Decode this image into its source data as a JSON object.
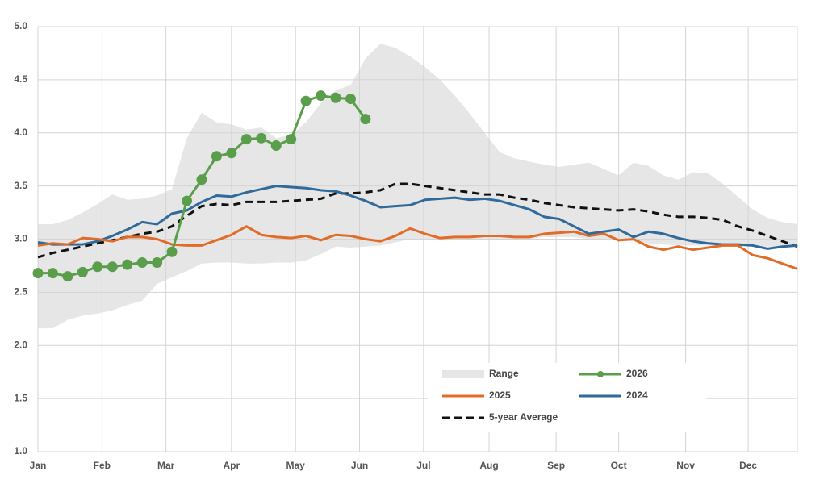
{
  "chart_data": {
    "type": "line",
    "x": [
      1,
      2,
      3,
      4,
      5,
      6,
      7,
      8,
      9,
      10,
      11,
      12,
      13,
      14,
      15,
      16,
      17,
      18,
      19,
      20,
      21,
      22,
      23,
      24,
      25,
      26,
      27,
      28,
      29,
      30,
      31,
      32,
      33,
      34,
      35,
      36,
      37,
      38,
      39,
      40,
      41,
      42,
      43,
      44,
      45,
      46,
      47,
      48,
      49,
      50,
      51,
      52
    ],
    "xlim": [
      1,
      52
    ],
    "xticks": [
      {
        "value": 1,
        "label": "Jan"
      },
      {
        "value": 5.3,
        "label": "Feb"
      },
      {
        "value": 9.6,
        "label": "Mar"
      },
      {
        "value": 14,
        "label": "Apr"
      },
      {
        "value": 18.3,
        "label": "May"
      },
      {
        "value": 22.6,
        "label": "Jun"
      },
      {
        "value": 26.9,
        "label": "Jul"
      },
      {
        "value": 31.3,
        "label": "Aug"
      },
      {
        "value": 35.8,
        "label": "Sep"
      },
      {
        "value": 40,
        "label": "Oct"
      },
      {
        "value": 44.5,
        "label": "Nov"
      },
      {
        "value": 48.7,
        "label": "Dec"
      }
    ],
    "ylim": [
      1,
      5
    ],
    "yticks": [
      {
        "value": 1,
        "label": "1.0"
      },
      1.5,
      {
        "value": 2,
        "label": "2.0"
      },
      2.5,
      {
        "value": 3,
        "label": "3.0"
      },
      3.5,
      {
        "value": 4,
        "label": "4.0"
      },
      4.5,
      {
        "value": 5,
        "label": "5.0"
      }
    ],
    "grid": true,
    "legend": "lower right",
    "range": {
      "name": "Range",
      "color": "#e6e6e6",
      "high": [
        3.14,
        3.14,
        3.18,
        3.25,
        3.33,
        3.42,
        3.37,
        3.38,
        3.41,
        3.47,
        3.95,
        4.19,
        4.1,
        4.08,
        4.03,
        4.05,
        3.95,
        3.98,
        4.1,
        4.28,
        4.4,
        4.45,
        4.7,
        4.84,
        4.8,
        4.72,
        4.62,
        4.5,
        4.35,
        4.18,
        4.0,
        3.82,
        3.76,
        3.73,
        3.7,
        3.68,
        3.7,
        3.72,
        3.66,
        3.6,
        3.72,
        3.69,
        3.6,
        3.56,
        3.63,
        3.62,
        3.52,
        3.4,
        3.28,
        3.2,
        3.16,
        3.14
      ],
      "low": [
        2.16,
        2.16,
        2.24,
        2.28,
        2.3,
        2.33,
        2.38,
        2.42,
        2.58,
        2.64,
        2.7,
        2.77,
        2.78,
        2.78,
        2.77,
        2.77,
        2.78,
        2.78,
        2.8,
        2.86,
        2.93,
        2.92,
        2.93,
        2.94,
        2.97,
        3.0,
        3.0,
        3.0,
        3.0,
        3.0,
        3.0,
        3.0,
        3.0,
        3.0,
        3.02,
        3.02,
        3.02,
        3.0,
        3.0,
        2.99,
        2.98,
        2.96,
        2.95,
        2.94,
        2.94,
        2.94,
        2.94,
        2.94,
        2.93,
        2.93,
        2.93,
        2.93
      ]
    },
    "series": [
      {
        "name": "2026",
        "color": "#5a9e4b",
        "markers": true,
        "values": [
          2.68,
          2.68,
          2.65,
          2.69,
          2.74,
          2.74,
          2.76,
          2.78,
          2.78,
          2.88,
          3.36,
          3.56,
          3.78,
          3.81,
          3.94,
          3.95,
          3.88,
          3.94,
          4.3,
          4.35,
          4.33,
          4.32,
          4.13,
          null,
          null,
          null,
          null,
          null,
          null,
          null,
          null,
          null,
          null,
          null,
          null,
          null,
          null,
          null,
          null,
          null,
          null,
          null,
          null,
          null,
          null,
          null,
          null,
          null,
          null,
          null,
          null,
          null
        ]
      },
      {
        "name": "2025",
        "color": "#e06c27",
        "values": [
          2.94,
          2.96,
          2.95,
          3.01,
          3.0,
          2.98,
          3.02,
          3.02,
          3.0,
          2.95,
          2.94,
          2.94,
          2.99,
          3.04,
          3.12,
          3.04,
          3.02,
          3.01,
          3.03,
          2.99,
          3.04,
          3.03,
          3.0,
          2.98,
          3.03,
          3.1,
          3.05,
          3.01,
          3.02,
          3.02,
          3.03,
          3.03,
          3.02,
          3.02,
          3.05,
          3.06,
          3.07,
          3.03,
          3.05,
          2.99,
          3.0,
          2.93,
          2.9,
          2.93,
          2.9,
          2.92,
          2.94,
          2.94,
          2.85,
          2.82,
          2.77,
          2.72
        ]
      },
      {
        "name": "2024",
        "color": "#2f6a9a",
        "values": [
          2.97,
          2.95,
          2.95,
          2.95,
          2.98,
          3.03,
          3.09,
          3.16,
          3.14,
          3.24,
          3.27,
          3.35,
          3.41,
          3.4,
          3.44,
          3.47,
          3.5,
          3.49,
          3.48,
          3.46,
          3.45,
          3.41,
          3.36,
          3.3,
          3.31,
          3.32,
          3.37,
          3.38,
          3.39,
          3.37,
          3.38,
          3.36,
          3.32,
          3.28,
          3.21,
          3.19,
          3.12,
          3.05,
          3.07,
          3.09,
          3.02,
          3.07,
          3.05,
          3.01,
          2.98,
          2.96,
          2.95,
          2.95,
          2.94,
          2.91,
          2.93,
          2.94
        ]
      },
      {
        "name": "5-year Average",
        "color": "#111111",
        "dash": true,
        "values": [
          2.83,
          2.87,
          2.9,
          2.93,
          2.96,
          2.99,
          3.02,
          3.05,
          3.07,
          3.12,
          3.22,
          3.31,
          3.33,
          3.32,
          3.35,
          3.35,
          3.35,
          3.36,
          3.37,
          3.38,
          3.43,
          3.43,
          3.44,
          3.46,
          3.52,
          3.52,
          3.5,
          3.48,
          3.46,
          3.44,
          3.42,
          3.42,
          3.39,
          3.37,
          3.34,
          3.32,
          3.3,
          3.29,
          3.28,
          3.27,
          3.28,
          3.26,
          3.23,
          3.21,
          3.21,
          3.2,
          3.18,
          3.12,
          3.08,
          3.03,
          2.98,
          2.93
        ]
      }
    ]
  }
}
